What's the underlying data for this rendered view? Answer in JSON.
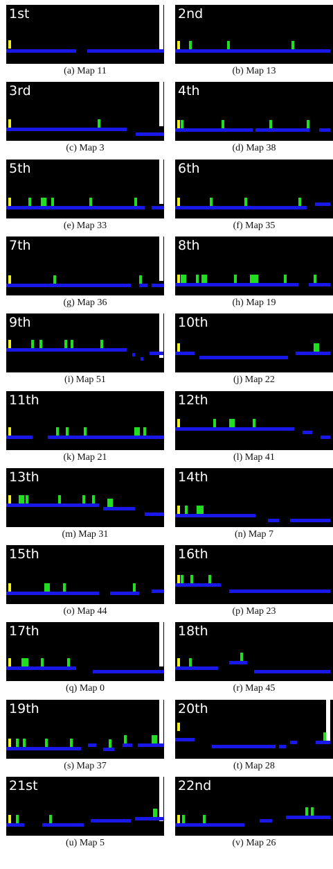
{
  "figure": {
    "panels": [
      {
        "rank": "1st",
        "caption": "(a) Map 11"
      },
      {
        "rank": "2nd",
        "caption": "(b) Map 13"
      },
      {
        "rank": "3rd",
        "caption": "(c) Map 3"
      },
      {
        "rank": "4th",
        "caption": "(d) Map 38"
      },
      {
        "rank": "5th",
        "caption": "(e) Map 33"
      },
      {
        "rank": "6th",
        "caption": "(f) Map 35"
      },
      {
        "rank": "7th",
        "caption": "(g) Map 36"
      },
      {
        "rank": "8th",
        "caption": "(h) Map 19"
      },
      {
        "rank": "9th",
        "caption": "(i) Map 51"
      },
      {
        "rank": "10th",
        "caption": "(j) Map 22"
      },
      {
        "rank": "11th",
        "caption": "(k) Map 21"
      },
      {
        "rank": "12th",
        "caption": "(l) Map 41"
      },
      {
        "rank": "13th",
        "caption": "(m) Map 31"
      },
      {
        "rank": "14th",
        "caption": "(n) Map 7"
      },
      {
        "rank": "15th",
        "caption": "(o) Map 44"
      },
      {
        "rank": "16th",
        "caption": "(p) Map 23"
      },
      {
        "rank": "17th",
        "caption": "(q) Map 0"
      },
      {
        "rank": "18th",
        "caption": "(r) Map 45"
      },
      {
        "rank": "19th",
        "caption": "(s) Map 37"
      },
      {
        "rank": "20th",
        "caption": "(t) Map 28"
      },
      {
        "rank": "21st",
        "caption": "(u) Map 5"
      },
      {
        "rank": "22nd",
        "caption": "(v) Map 26"
      }
    ]
  }
}
